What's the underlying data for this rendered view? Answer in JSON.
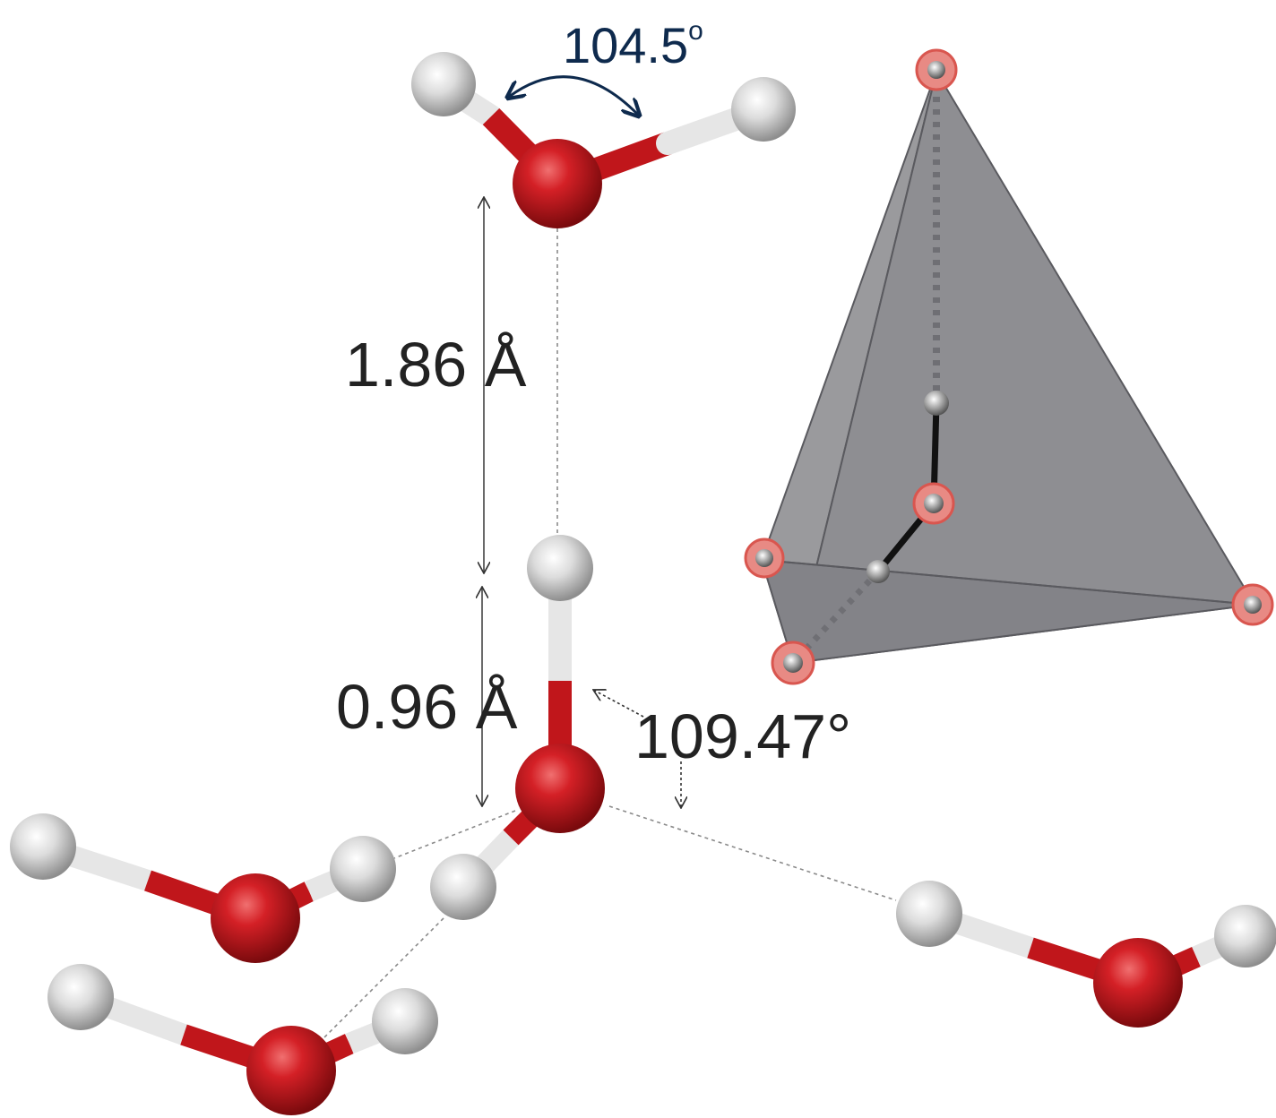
{
  "labels": {
    "hoh_angle": "104.5",
    "hoh_angle_unit": "o",
    "hbond_length": "1.86 Å",
    "oh_bond_length": "0.96 Å",
    "tetra_angle": "109.47°"
  },
  "colors": {
    "oxygen": "#c0161b",
    "hydrogen": "#d6d6d6",
    "bond_white": "#e6e6e6",
    "tetrahedron": "#8c8c8f",
    "angle_arrow": "#0e2a4d",
    "text": "#111111",
    "dashed_line": "#8a8a8a"
  }
}
